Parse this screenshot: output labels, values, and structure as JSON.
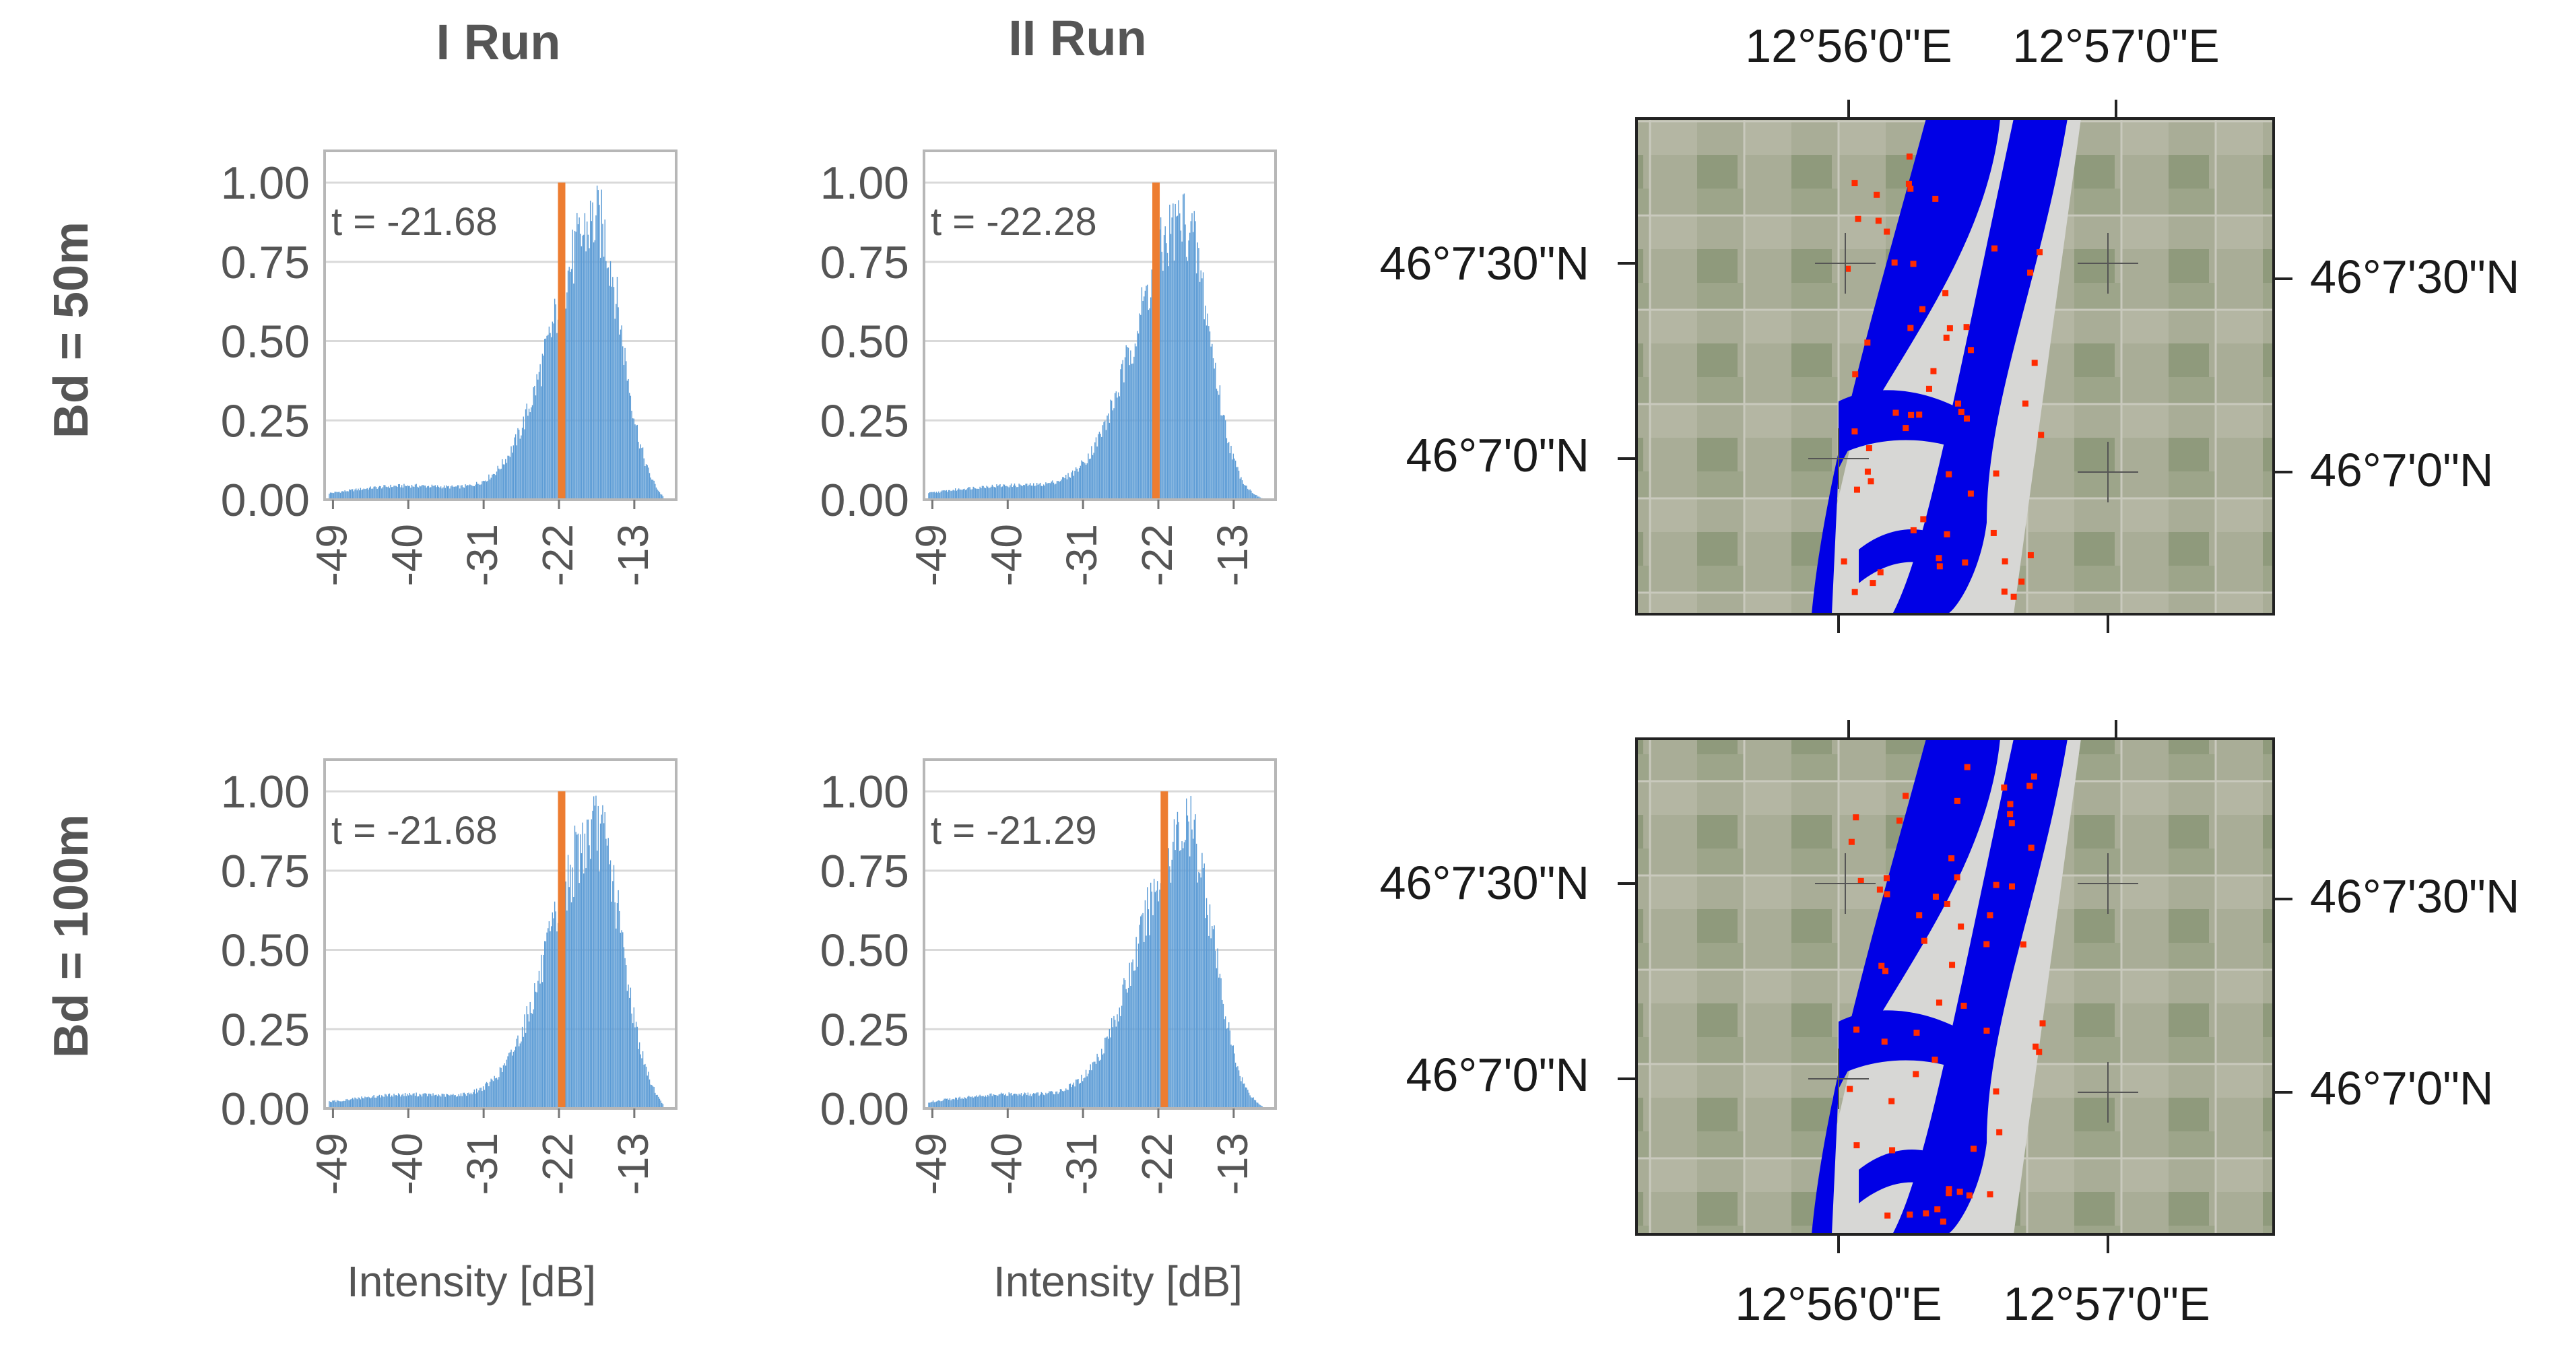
{
  "figure": {
    "col_titles": [
      "I Run",
      "II Run"
    ],
    "row_titles": [
      "Bd = 50m",
      "Bd = 100m"
    ],
    "xlabel": "Intensity [dB]"
  },
  "colors": {
    "bars": "#5b9bd5",
    "threshold": "#ed7d31",
    "water": "#0000e6",
    "change": "#ff2a00",
    "grid": "#d9d9d9",
    "frame": "#b7b7b7"
  },
  "chart_data": [
    {
      "type": "bar",
      "name": "Bd = 50m / I Run",
      "xticks": [
        -49,
        -40,
        -31,
        -22,
        -13
      ],
      "xlim": [
        -50,
        -8
      ],
      "yticks": [
        "0.00",
        "0.25",
        "0.50",
        "0.75",
        "1.00"
      ],
      "ylim": [
        0,
        1.1
      ],
      "threshold": -21.68,
      "threshold_label": "t = -21.68",
      "peak": -17.5,
      "spread": 3.6,
      "ymax_bar": 1.0
    },
    {
      "type": "bar",
      "name": "Bd = 50m / II Run",
      "xticks": [
        -49,
        -40,
        -31,
        -22,
        -13
      ],
      "xlim": [
        -50,
        -8
      ],
      "yticks": [
        "0.00",
        "0.25",
        "0.50",
        "0.75",
        "1.00"
      ],
      "ylim": [
        0,
        1.1
      ],
      "threshold": -22.28,
      "threshold_label": "t = -22.28",
      "peak": -19.0,
      "spread": 3.8,
      "ymax_bar": 1.0
    },
    {
      "type": "bar",
      "name": "Bd = 100m / I Run",
      "xticks": [
        -49,
        -40,
        -31,
        -22,
        -13
      ],
      "xlim": [
        -50,
        -8
      ],
      "yticks": [
        "0.00",
        "0.25",
        "0.50",
        "0.75",
        "1.00"
      ],
      "ylim": [
        0,
        1.1
      ],
      "threshold": -21.68,
      "threshold_label": "t = -21.68",
      "peak": -17.5,
      "spread": 3.7,
      "ymax_bar": 1.0
    },
    {
      "type": "bar",
      "name": "Bd = 100m / II Run",
      "xticks": [
        -49,
        -40,
        -31,
        -22,
        -13
      ],
      "xlim": [
        -50,
        -8
      ],
      "yticks": [
        "0.00",
        "0.25",
        "0.50",
        "0.75",
        "1.00"
      ],
      "ylim": [
        0,
        1.1
      ],
      "threshold": -21.29,
      "threshold_label": "t = -21.29",
      "peak": -18.5,
      "spread": 3.8,
      "ymax_bar": 1.0
    }
  ],
  "maps": {
    "top_lon_labels": [
      "12°56'0\"E",
      "12°57'0\"E"
    ],
    "bottom_lon_labels": [
      "12°56'0\"E",
      "12°57'0\"E"
    ],
    "left_lat_labels": [
      "46°7'30\"N",
      "46°7'0\"N"
    ],
    "right_lat_labels": [
      "46°7'30\"N",
      "46°7'0\"N"
    ]
  }
}
